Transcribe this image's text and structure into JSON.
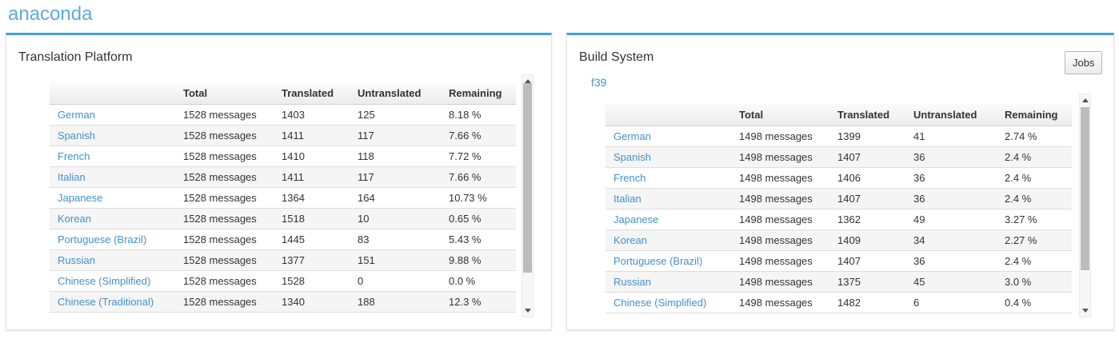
{
  "app": {
    "title": "anaconda"
  },
  "colors": {
    "accent_blue": "#3ba3dc",
    "title_blue": "#5dabdc",
    "link_blue": "#4292c8"
  },
  "panels": [
    {
      "title": "Translation Platform",
      "table": {
        "headers": {
          "language": "",
          "total": "Total",
          "translated": "Translated",
          "untranslated": "Untranslated",
          "remaining": "Remaining"
        },
        "rows": [
          {
            "language": "German",
            "total": "1528 messages",
            "translated": "1403",
            "untranslated": "125",
            "remaining": "8.18 %"
          },
          {
            "language": "Spanish",
            "total": "1528 messages",
            "translated": "1411",
            "untranslated": "117",
            "remaining": "7.66 %"
          },
          {
            "language": "French",
            "total": "1528 messages",
            "translated": "1410",
            "untranslated": "118",
            "remaining": "7.72 %"
          },
          {
            "language": "Italian",
            "total": "1528 messages",
            "translated": "1411",
            "untranslated": "117",
            "remaining": "7.66 %"
          },
          {
            "language": "Japanese",
            "total": "1528 messages",
            "translated": "1364",
            "untranslated": "164",
            "remaining": "10.73 %"
          },
          {
            "language": "Korean",
            "total": "1528 messages",
            "translated": "1518",
            "untranslated": "10",
            "remaining": "0.65 %"
          },
          {
            "language": "Portuguese (Brazil)",
            "total": "1528 messages",
            "translated": "1445",
            "untranslated": "83",
            "remaining": "5.43 %"
          },
          {
            "language": "Russian",
            "total": "1528 messages",
            "translated": "1377",
            "untranslated": "151",
            "remaining": "9.88 %"
          },
          {
            "language": "Chinese (Simplified)",
            "total": "1528 messages",
            "translated": "1528",
            "untranslated": "0",
            "remaining": "0.0 %"
          },
          {
            "language": "Chinese (Traditional)",
            "total": "1528 messages",
            "translated": "1340",
            "untranslated": "188",
            "remaining": "12.3 %"
          }
        ]
      }
    },
    {
      "title": "Build System",
      "jobs_button": "Jobs",
      "release": "f39",
      "table": {
        "headers": {
          "language": "",
          "total": "Total",
          "translated": "Translated",
          "untranslated": "Untranslated",
          "remaining": "Remaining"
        },
        "rows": [
          {
            "language": "German",
            "total": "1498 messages",
            "translated": "1399",
            "untranslated": "41",
            "remaining": "2.74 %"
          },
          {
            "language": "Spanish",
            "total": "1498 messages",
            "translated": "1407",
            "untranslated": "36",
            "remaining": "2.4 %"
          },
          {
            "language": "French",
            "total": "1498 messages",
            "translated": "1406",
            "untranslated": "36",
            "remaining": "2.4 %"
          },
          {
            "language": "Italian",
            "total": "1498 messages",
            "translated": "1407",
            "untranslated": "36",
            "remaining": "2.4 %"
          },
          {
            "language": "Japanese",
            "total": "1498 messages",
            "translated": "1362",
            "untranslated": "49",
            "remaining": "3.27 %"
          },
          {
            "language": "Korean",
            "total": "1498 messages",
            "translated": "1409",
            "untranslated": "34",
            "remaining": "2.27 %"
          },
          {
            "language": "Portuguese (Brazil)",
            "total": "1498 messages",
            "translated": "1407",
            "untranslated": "36",
            "remaining": "2.4 %"
          },
          {
            "language": "Russian",
            "total": "1498 messages",
            "translated": "1375",
            "untranslated": "45",
            "remaining": "3.0 %"
          },
          {
            "language": "Chinese (Simplified)",
            "total": "1498 messages",
            "translated": "1482",
            "untranslated": "6",
            "remaining": "0.4 %"
          }
        ]
      }
    }
  ]
}
